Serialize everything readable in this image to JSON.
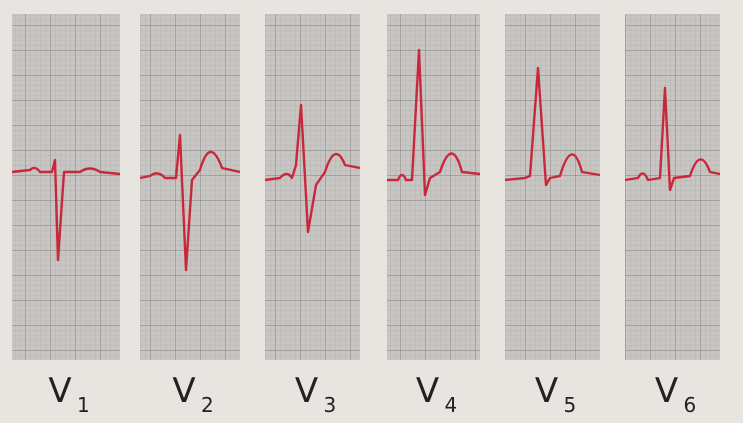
{
  "leads": [
    {
      "letter": "V",
      "sub": "1"
    },
    {
      "letter": "V",
      "sub": "2"
    },
    {
      "letter": "V",
      "sub": "3"
    },
    {
      "letter": "V",
      "sub": "4"
    },
    {
      "letter": "V",
      "sub": "5"
    },
    {
      "letter": "V",
      "sub": "6"
    }
  ]
}
